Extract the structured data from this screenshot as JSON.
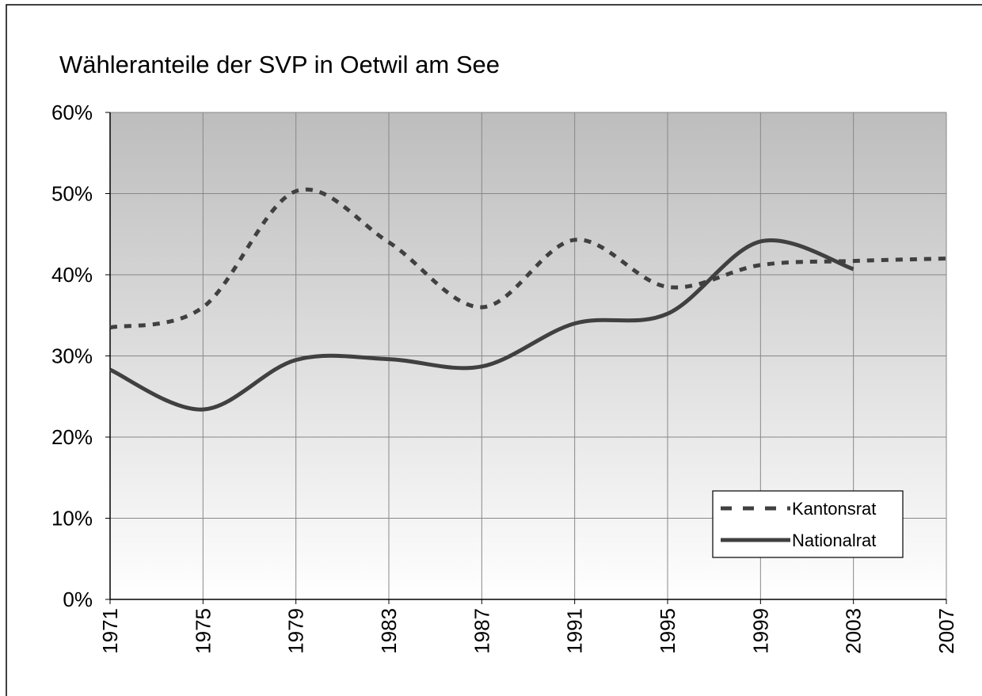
{
  "chart_data": {
    "type": "line",
    "title": "Wähleranteile der SVP in Oetwil am See",
    "x": [
      1971,
      1975,
      1979,
      1983,
      1987,
      1991,
      1995,
      1999,
      2003,
      2007
    ],
    "series": [
      {
        "name": "Kantonsrat",
        "color": "#404040",
        "style": "dashed",
        "values": [
          33.5,
          36,
          50.3,
          44,
          36,
          44.3,
          38.5,
          41.2,
          41.7,
          42
        ]
      },
      {
        "name": "Nationalrat",
        "color": "#404040",
        "style": "solid",
        "values": [
          28.3,
          23.4,
          29.5,
          29.6,
          28.7,
          34,
          35.2,
          44.1,
          40.7,
          null
        ]
      }
    ],
    "xlim": [
      1971,
      2007
    ],
    "xticks": [
      1971,
      1975,
      1979,
      1983,
      1987,
      1991,
      1995,
      1999,
      2003,
      2007
    ],
    "ylim": [
      0,
      60
    ],
    "yticks": [
      {
        "value": 0,
        "label": "0%"
      },
      {
        "value": 10,
        "label": "10%"
      },
      {
        "value": 20,
        "label": "20%"
      },
      {
        "value": 30,
        "label": "30%"
      },
      {
        "value": 40,
        "label": "40%"
      },
      {
        "value": 50,
        "label": "50%"
      },
      {
        "value": 60,
        "label": "60%"
      }
    ],
    "grid": true,
    "legend": "lower right"
  }
}
